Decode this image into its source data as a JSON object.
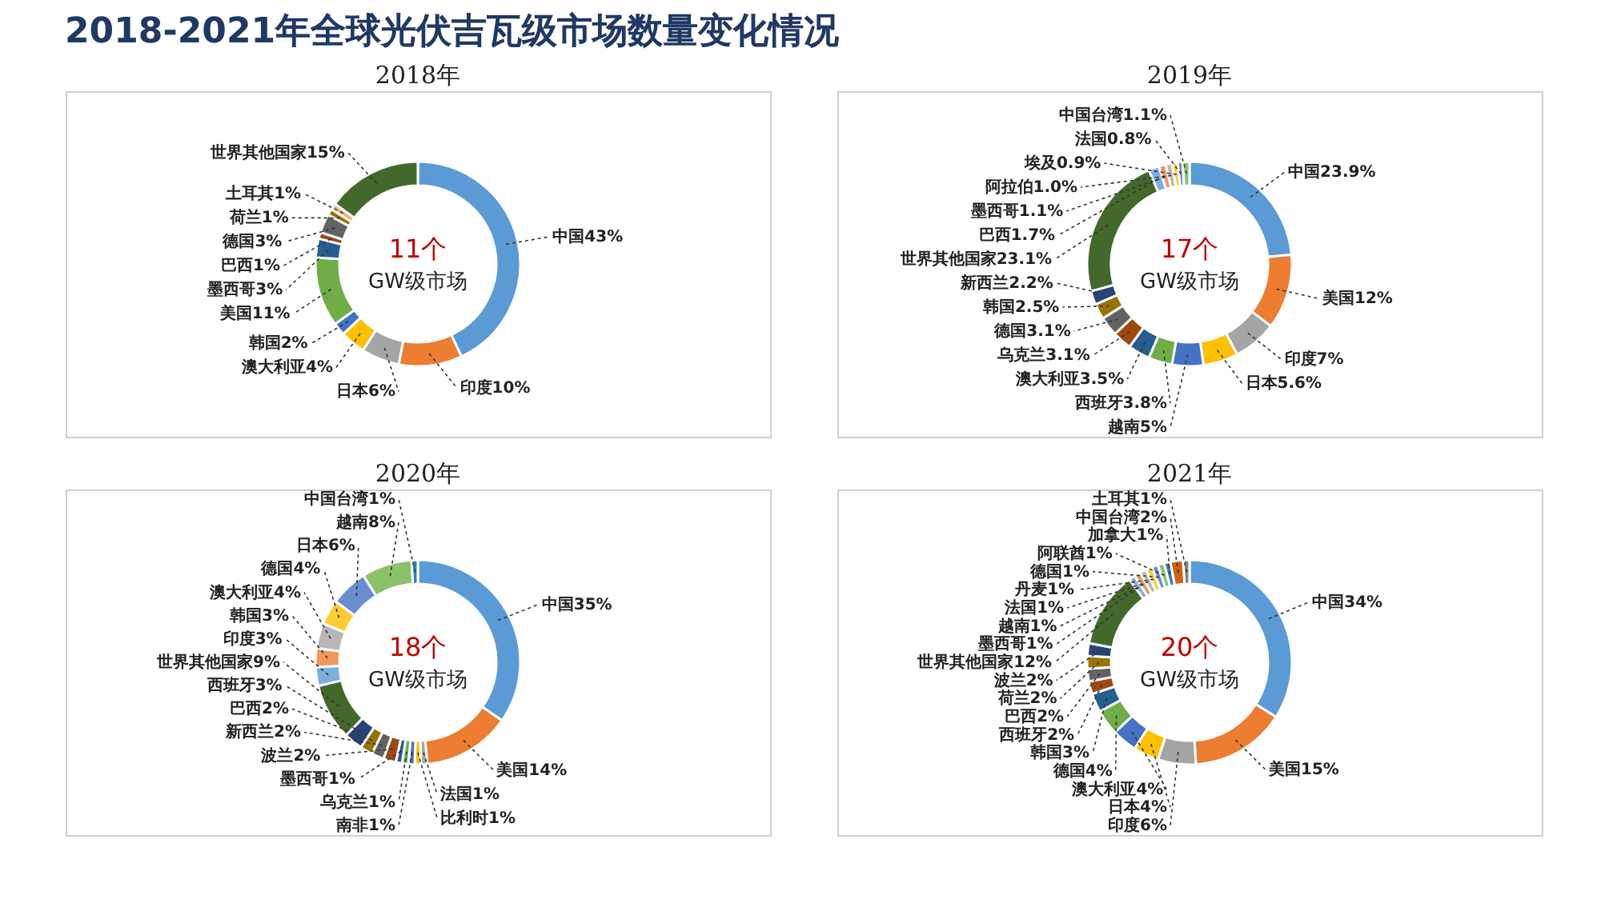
{
  "chart_data": [
    {
      "type": "donut",
      "title": "2018年",
      "annotations": [
        "2018-2021年全球光伏吉瓦级市场数量变化情况",
        "11个",
        "GW级市场"
      ],
      "categories": [
        "中国",
        "印度",
        "日本",
        "澳大利亚",
        "韩国",
        "美国",
        "墨西哥",
        "巴西",
        "德国",
        "荷兰",
        "土耳其",
        "世界其他国家"
      ],
      "values": [
        43,
        10,
        6,
        4,
        2,
        11,
        3,
        1,
        3,
        1,
        1,
        15
      ],
      "value_labels": [
        "43%",
        "10%",
        "6%",
        "4%",
        "2%",
        "11%",
        "3%",
        "1%",
        "3%",
        "1%",
        "1%",
        "15%"
      ],
      "colors": [
        "#5b9bd5",
        "#ed7d31",
        "#a5a5a5",
        "#ffc000",
        "#4472c4",
        "#70ad47",
        "#255e91",
        "#9e480e",
        "#636363",
        "#997300",
        "#f4b183",
        "#43682b"
      ]
    },
    {
      "type": "donut",
      "title": "2019年",
      "annotations": [
        "17个",
        "GW级市场"
      ],
      "categories": [
        "中国",
        "美国",
        "印度",
        "日本",
        "越南",
        "西班牙",
        "澳大利亚",
        "乌克兰",
        "德国",
        "韩国",
        "新西兰",
        "世界其他国家",
        "巴西",
        "墨西哥",
        "阿拉伯",
        "埃及",
        "法国",
        "中国台湾"
      ],
      "values": [
        23.9,
        12,
        7,
        5.6,
        5,
        3.8,
        3.5,
        3.1,
        3.1,
        2.5,
        2.2,
        23.1,
        1.7,
        1.1,
        1.0,
        0.9,
        0.8,
        1.1
      ],
      "value_labels": [
        "23.9%",
        "12%",
        "7%",
        "5.6%",
        "5%",
        "3.8%",
        "3.5%",
        "3.1%",
        "3.1%",
        "2.5%",
        "2.2%",
        "23.1%",
        "1.7%",
        "1.1%",
        "1.0%",
        "0.9%",
        "0.8%",
        "1.1%"
      ],
      "colors": [
        "#5b9bd5",
        "#ed7d31",
        "#a5a5a5",
        "#ffc000",
        "#4472c4",
        "#70ad47",
        "#255e91",
        "#9e480e",
        "#636363",
        "#997300",
        "#264478",
        "#43682b",
        "#7cafdd",
        "#f1975a",
        "#b7b7b7",
        "#ffcd33",
        "#698ed0",
        "#8cc168"
      ]
    },
    {
      "type": "donut",
      "title": "2020年",
      "annotations": [
        "18个",
        "GW级市场"
      ],
      "categories": [
        "中国",
        "美国",
        "法国",
        "比利时",
        "南非",
        "乌克兰",
        "墨西哥",
        "波兰",
        "新西兰",
        "巴西",
        "西班牙",
        "世界其他国家",
        "印度",
        "韩国",
        "澳大利亚",
        "德国",
        "日本",
        "越南",
        "中国台湾"
      ],
      "values": [
        35,
        14,
        1,
        1,
        1,
        1,
        1,
        2,
        2,
        2,
        3,
        9,
        3,
        3,
        4,
        4,
        6,
        8,
        1
      ],
      "value_labels": [
        "35%",
        "14%",
        "1%",
        "1%",
        "1%",
        "1%",
        "1%",
        "2%",
        "2%",
        "2%",
        "3%",
        "9%",
        "3%",
        "3%",
        "4%",
        "4%",
        "6%",
        "8%",
        "1%"
      ],
      "colors": [
        "#5b9bd5",
        "#ed7d31",
        "#a5a5a5",
        "#ffc000",
        "#4472c4",
        "#70ad47",
        "#255e91",
        "#9e480e",
        "#636363",
        "#997300",
        "#264478",
        "#43682b",
        "#7cafdd",
        "#f1975a",
        "#b7b7b7",
        "#ffcd33",
        "#698ed0",
        "#8cc168",
        "#327dc2"
      ]
    },
    {
      "type": "donut",
      "title": "2021年",
      "annotations": [
        "20个",
        "GW级市场"
      ],
      "categories": [
        "中国",
        "美国",
        "印度",
        "日本",
        "澳大利亚",
        "德国",
        "韩国",
        "西班牙",
        "巴西",
        "荷兰",
        "波兰",
        "世界其他国家",
        "墨西哥",
        "越南",
        "法国",
        "丹麦",
        "德国",
        "阿联酋",
        "加拿大",
        "中国台湾",
        "土耳其"
      ],
      "values": [
        34,
        15,
        6,
        4,
        4,
        4,
        3,
        2,
        2,
        2,
        2,
        12,
        1,
        1,
        1,
        1,
        1,
        1,
        1,
        2,
        1
      ],
      "value_labels": [
        "34%",
        "15%",
        "6%",
        "4%",
        "4%",
        "4%",
        "3%",
        "2%",
        "2%",
        "2%",
        "2%",
        "12%",
        "1%",
        "1%",
        "1%",
        "1%",
        "1%",
        "1%",
        "1%",
        "2%",
        "1%"
      ],
      "colors": [
        "#5b9bd5",
        "#ed7d31",
        "#a5a5a5",
        "#ffc000",
        "#4472c4",
        "#70ad47",
        "#255e91",
        "#9e480e",
        "#636363",
        "#997300",
        "#264478",
        "#43682b",
        "#7cafdd",
        "#f1975a",
        "#b7b7b7",
        "#ffcd33",
        "#698ed0",
        "#8cc168",
        "#327dc2",
        "#d26012",
        "#848484"
      ]
    }
  ]
}
